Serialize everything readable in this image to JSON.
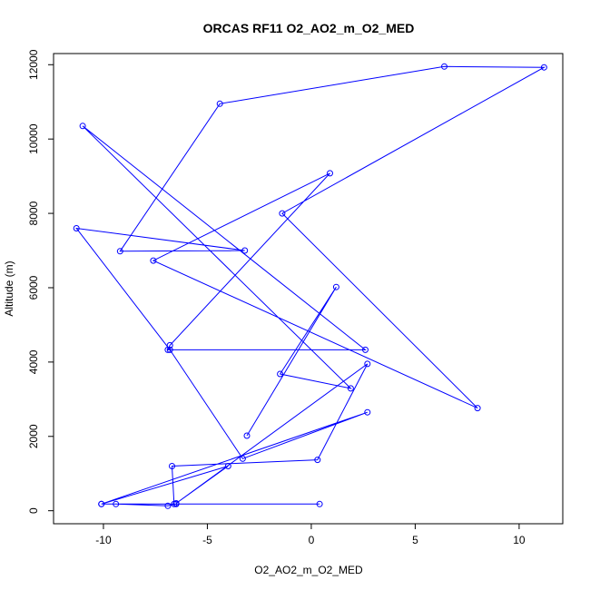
{
  "chart_data": {
    "type": "line",
    "title": "ORCAS RF11 O2_AO2_m_O2_MED",
    "xlabel": "O2_AO2_m_O2_MED",
    "ylabel": "Altitude (m)",
    "xlim": [
      -12.4,
      12.1
    ],
    "ylim": [
      -350,
      12300
    ],
    "x_ticks": [
      -10,
      -5,
      0,
      5,
      10
    ],
    "y_ticks": [
      0,
      2000,
      4000,
      6000,
      8000,
      10000,
      12000
    ],
    "grid": false,
    "color": "#0000ff",
    "markers": "open-circle",
    "series": [
      {
        "x": [
          0.4,
          -10.1,
          -9.4,
          -6.9,
          -6.5,
          -6.6,
          -6.7,
          0.3,
          2.7,
          -6.5,
          -4.0,
          -10.1,
          2.7,
          -3.3,
          -6.8,
          -11.3,
          -3.2,
          -9.2,
          -4.4,
          6.4,
          11.2,
          -1.4,
          8.0,
          -7.6,
          0.9,
          -6.8,
          -6.9,
          2.6,
          -11.0,
          1.9,
          -1.5,
          1.2,
          -3.1
        ],
        "y": [
          180,
          180,
          180,
          130,
          180,
          180,
          1200,
          1370,
          3950,
          200,
          1200,
          180,
          2650,
          1400,
          4330,
          7600,
          7000,
          6980,
          10950,
          11950,
          11930,
          8000,
          2760,
          6730,
          9080,
          4450,
          4330,
          4330,
          10350,
          3290,
          3680,
          6020,
          2020
        ]
      }
    ]
  }
}
